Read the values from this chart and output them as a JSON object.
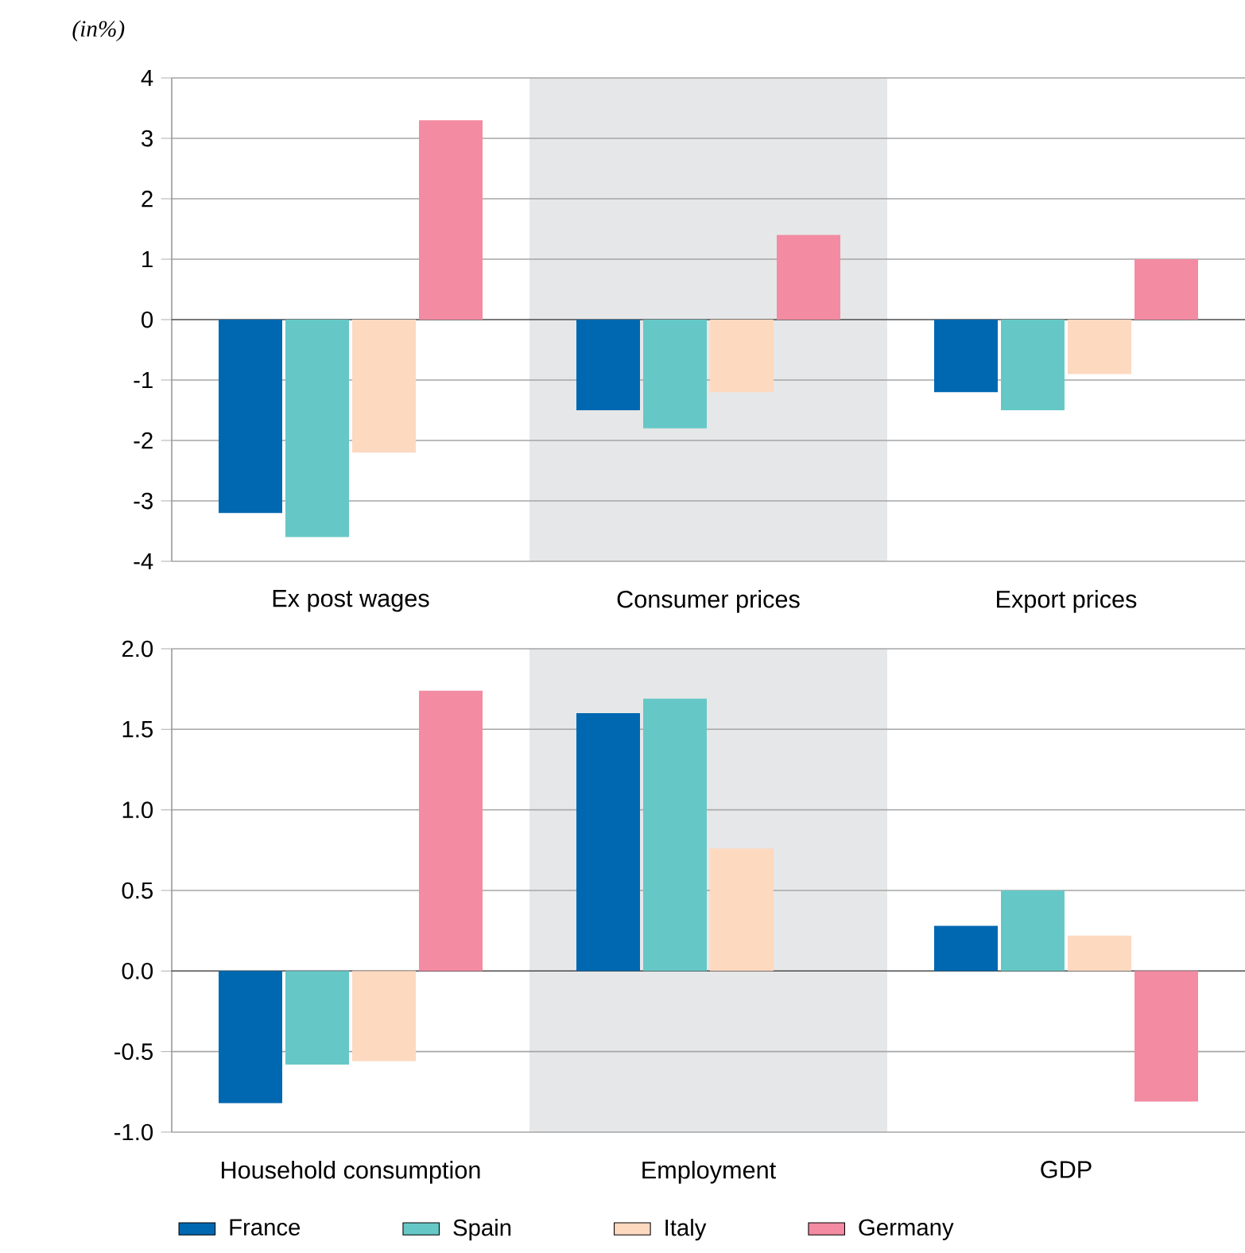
{
  "chart_data": [
    {
      "type": "bar",
      "ylabel": "(in%)",
      "categories": [
        "Ex post wages",
        "Consumer prices",
        "Export prices"
      ],
      "series": [
        {
          "color": "#0068b1",
          "values": [
            -3.2,
            -1.5,
            -1.2
          ]
        },
        {
          "color": "#66c8c6",
          "values": [
            -3.6,
            -1.8,
            -1.5
          ]
        },
        {
          "color": "#fdd9c0",
          "values": [
            -2.2,
            -1.2,
            -0.9
          ]
        },
        {
          "color": "#f38ba2",
          "values": [
            3.3,
            1.4,
            1.0
          ]
        }
      ],
      "ylim": [
        -4,
        4
      ],
      "yticks": [
        -4,
        -3,
        -2,
        -1,
        0,
        1,
        2,
        3,
        4
      ],
      "grid": "y",
      "bands": [
        {
          "axis": "x",
          "from": "Consumer prices",
          "to": "Consumer prices",
          "color": "#e6e7e8"
        }
      ]
    },
    {
      "type": "bar",
      "categories": [
        "Household consumption",
        "Employment",
        "GDP"
      ],
      "series": [
        {
          "name": "France",
          "color": "#0068b1",
          "values": [
            -0.82,
            1.6,
            0.28
          ]
        },
        {
          "name": "Spain",
          "color": "#66c8c6",
          "values": [
            -0.58,
            1.69,
            0.5
          ]
        },
        {
          "name": "Italy",
          "color": "#fdd9c0",
          "values": [
            -0.56,
            0.76,
            0.22
          ]
        },
        {
          "name": "Germany",
          "color": "#f38ba2",
          "values": [
            1.74,
            null,
            -0.81
          ]
        }
      ],
      "ylim": [
        -1,
        2
      ],
      "yticks": [
        {
          "value": -1,
          "label": "-1.0"
        },
        {
          "value": -0.5,
          "label": "-0.5"
        },
        {
          "value": 0,
          "label": "0.0"
        },
        {
          "value": 0.5,
          "label": "0.5"
        },
        {
          "value": 1,
          "label": "1.0"
        },
        {
          "value": 1.5,
          "label": "1.5"
        },
        {
          "value": 2,
          "label": "2.0"
        }
      ],
      "grid": "y",
      "legend": "bottom",
      "bands": [
        {
          "axis": "x",
          "from": "Employment",
          "to": "Employment",
          "color": "#e6e7e8"
        }
      ]
    }
  ]
}
